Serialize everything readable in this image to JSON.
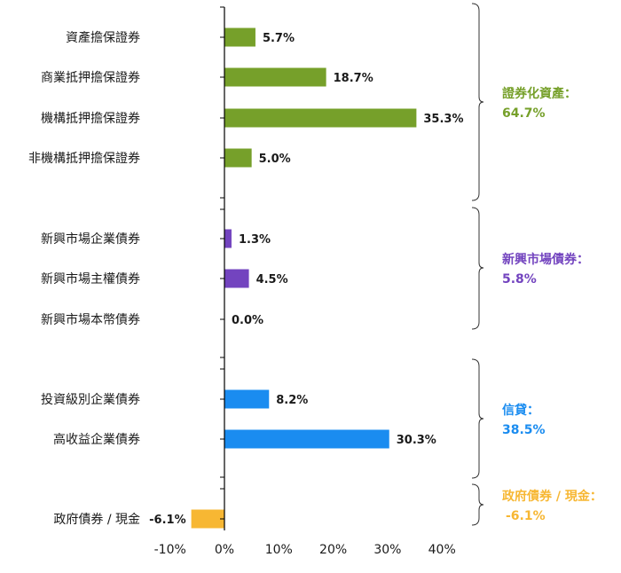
{
  "chart_data": {
    "type": "bar",
    "orientation": "horizontal",
    "categories": [
      "資產擔保證券",
      "商業抵押擔保證券",
      "機構抵押擔保證券",
      "非機構抵押擔保證券",
      "新興市場企業債券",
      "新興市場主權債券",
      "新興市場本幣債券",
      "投資級別企業債券",
      "高收益企業債券",
      "政府債券 / 現金"
    ],
    "values": [
      5.7,
      18.7,
      35.3,
      5.0,
      1.3,
      4.5,
      0.0,
      8.2,
      30.3,
      -6.1
    ],
    "value_labels": [
      "5.7%",
      "18.7%",
      "35.3%",
      "5.0%",
      "1.3%",
      "4.5%",
      "0.0%",
      "8.2%",
      "30.3%",
      "-6.1%"
    ],
    "groups": [
      {
        "title": "證券化資產：",
        "total": "64.7%",
        "color": "#76a02a",
        "members": [
          0,
          1,
          2,
          3
        ]
      },
      {
        "title": "新興市場債券：",
        "total": "5.8%",
        "color": "#7344bf",
        "members": [
          4,
          5,
          6
        ]
      },
      {
        "title": "信貸：",
        "total": "38.5%",
        "color": "#1a8cf0",
        "members": [
          7,
          8
        ]
      },
      {
        "title": "政府債券 / 現金：",
        "total": "-6.1%",
        "color": "#f7b733",
        "members": [
          9
        ]
      }
    ],
    "xlim": [
      -10,
      40
    ],
    "xticks": [
      -10,
      0,
      10,
      20,
      30,
      40
    ],
    "xtick_labels": [
      "-10%",
      "0%",
      "10%",
      "20%",
      "30%",
      "40%"
    ],
    "grid": false
  }
}
